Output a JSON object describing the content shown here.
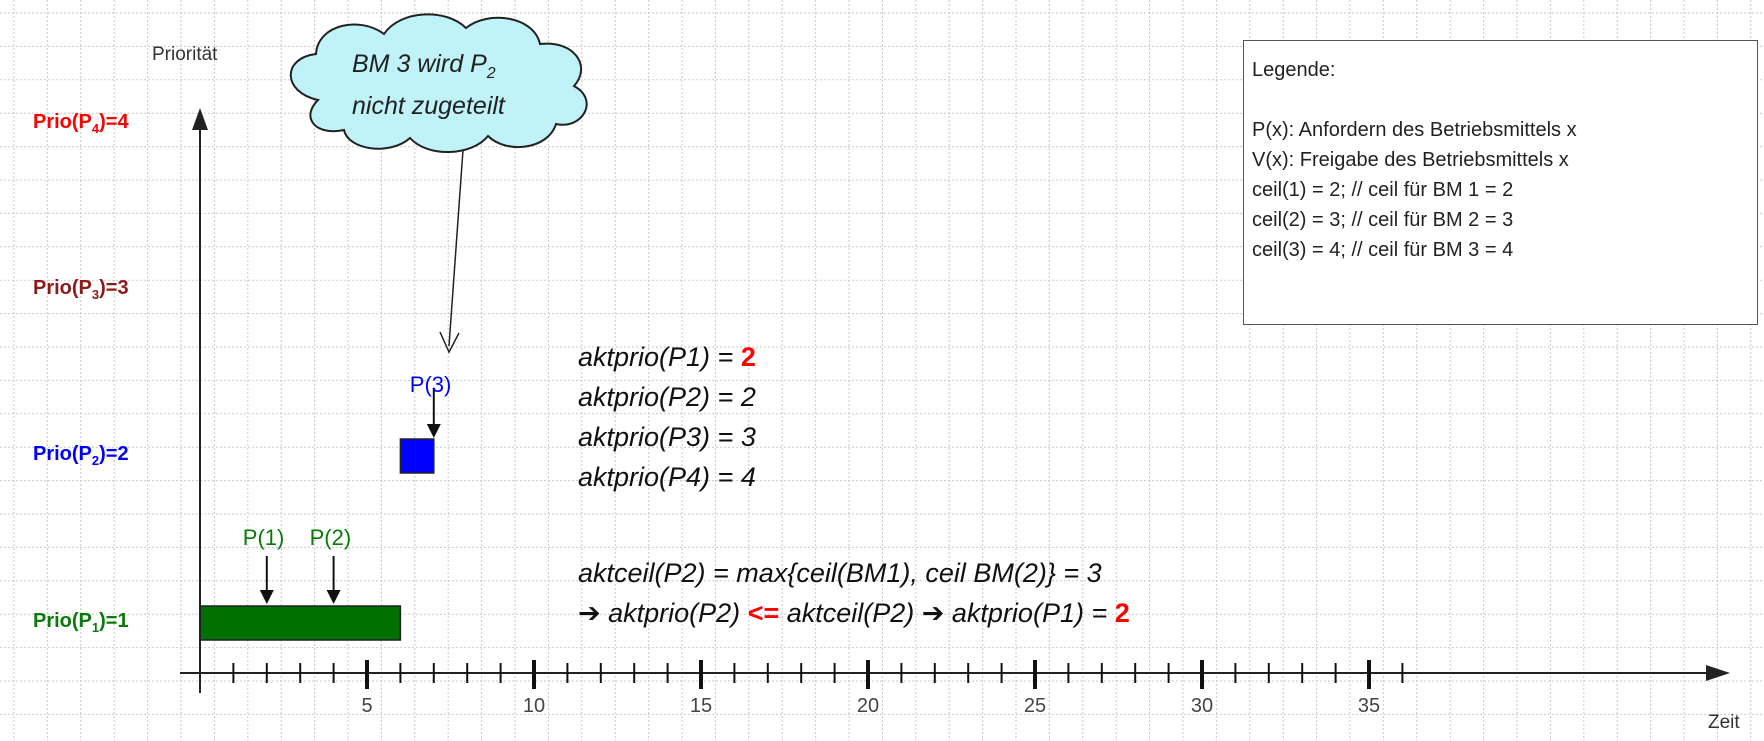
{
  "y_axis_title": "Priorität",
  "x_axis_title": "Zeit",
  "priority_labels": [
    {
      "base": "Prio(P",
      "sub": "4",
      "tail": ")=4",
      "color": "#ff0000"
    },
    {
      "base": "Prio(P",
      "sub": "3",
      "tail": ")=3",
      "color": "#8b1a1a"
    },
    {
      "base": "Prio(P",
      "sub": "2",
      "tail": ")=2",
      "color": "#0000ff"
    },
    {
      "base": "Prio(P",
      "sub": "1",
      "tail": ")=1",
      "color": "#0a7a0a"
    }
  ],
  "x_ticks": [
    "5",
    "10",
    "15",
    "20",
    "25",
    "30",
    "35"
  ],
  "callout": {
    "line1_base": "BM 3 wird P",
    "line1_sub": "2",
    "line2": "nicht zugeteilt"
  },
  "legend": {
    "title": "Legende:",
    "lines": [
      "P(x): Anfordern des Betriebsmittels x",
      "V(x): Freigabe des Betriebsmittels x",
      "ceil(1) = 2; // ceil für BM 1 = 2",
      "ceil(2) = 3; // ceil für BM 2 = 3",
      "ceil(3) = 4; // ceil für BM 3 = 4"
    ]
  },
  "events": [
    {
      "label": "P(1)",
      "color": "#0a7a0a",
      "time": 2
    },
    {
      "label": "P(2)",
      "color": "#0a7a0a",
      "time": 4
    },
    {
      "label": "P(3)",
      "color": "#0000ff",
      "time": 7
    }
  ],
  "bars": [
    {
      "process": "P1",
      "start": 0,
      "end": 6,
      "priority": 1,
      "color": "#007000"
    },
    {
      "process": "P2",
      "start": 6,
      "end": 7,
      "priority": 2,
      "color": "#0000ff"
    }
  ],
  "formulas": {
    "aktprio_p1_prefix": "aktprio(P1) = ",
    "aktprio_p1_value": "2",
    "aktprio_p2": "aktprio(P2) = 2",
    "aktprio_p3": "aktprio(P3) = 3",
    "aktprio_p4": "aktprio(P4) = 4",
    "aktceil": "aktceil(P2) = max{ceil(BM1), ceil BM(2)} = 3",
    "last_arrow1": "➔",
    "last_part1": " aktprio(P2) ",
    "last_op": "<=",
    "last_part2": " aktceil(P2) ",
    "last_arrow2": "➔",
    "last_part3": " aktprio(P1) = ",
    "last_value": "2"
  }
}
